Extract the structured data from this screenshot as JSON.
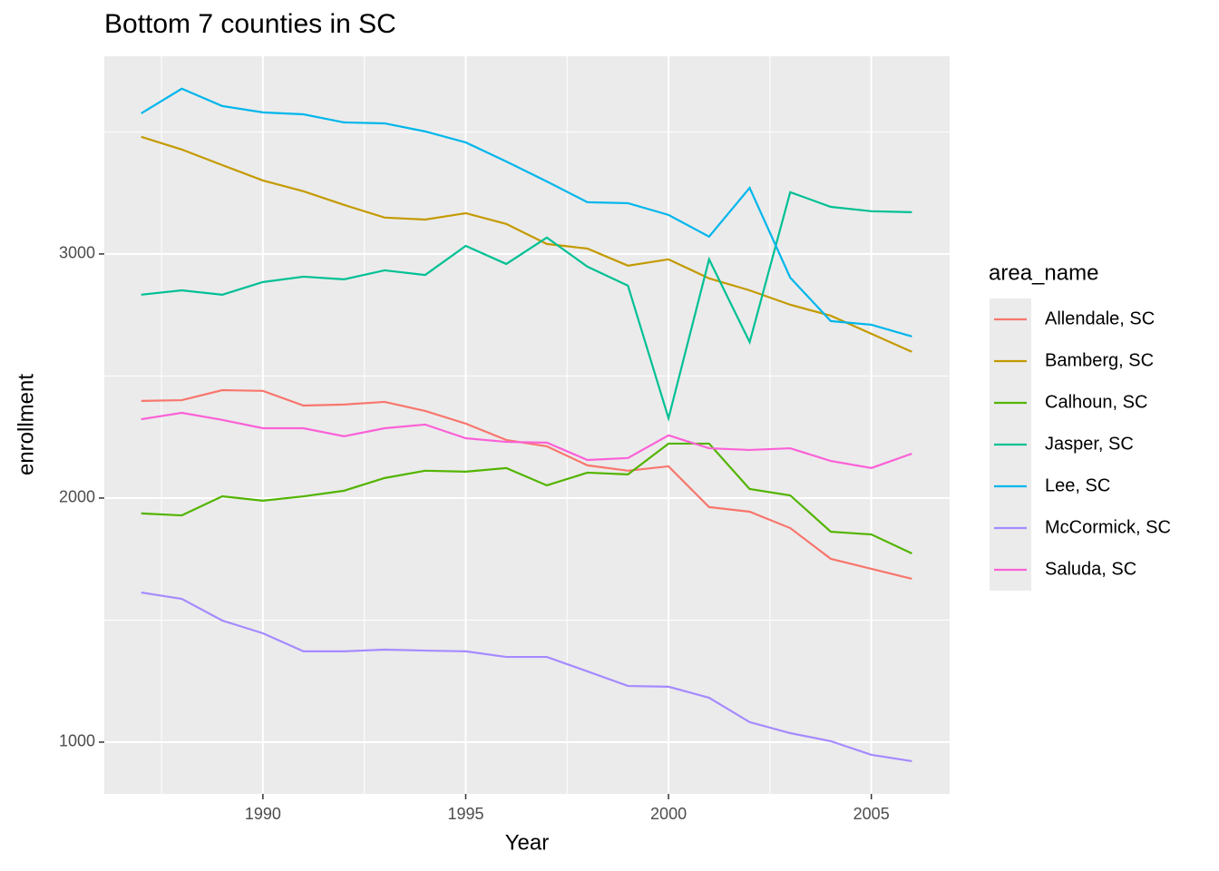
{
  "chart_data": {
    "type": "line",
    "title": "Bottom 7 counties in SC",
    "x_label": "Year",
    "y_label": "enrollment",
    "x": [
      1987,
      1988,
      1989,
      1990,
      1991,
      1992,
      1993,
      1994,
      1995,
      1996,
      1997,
      1998,
      1999,
      2000,
      2001,
      2002,
      2003,
      2004,
      2005,
      2006
    ],
    "xlim": [
      1986.09,
      2006.93
    ],
    "xticks": [
      1990,
      1995,
      2000,
      2005
    ],
    "ylim": [
      788,
      3810
    ],
    "yticks": [
      1000,
      2000,
      3000
    ],
    "grid": true,
    "legend_position": "right",
    "legend_title": "area_name",
    "series": [
      {
        "name": "Allendale, SC",
        "color": "#F8766D",
        "values": [
          2398,
          2401,
          2442,
          2439,
          2379,
          2383,
          2394,
          2357,
          2305,
          2238,
          2212,
          2134,
          2112,
          2130,
          1963,
          1944,
          1877,
          1751,
          1710,
          1669
        ]
      },
      {
        "name": "Bamberg, SC",
        "color": "#C49A00",
        "values": [
          3480,
          3428,
          3364,
          3301,
          3257,
          3201,
          3149,
          3141,
          3167,
          3123,
          3041,
          3022,
          2952,
          2978,
          2900,
          2851,
          2792,
          2747,
          2673,
          2599
        ]
      },
      {
        "name": "Calhoun, SC",
        "color": "#53B400",
        "values": [
          1937,
          1929,
          2007,
          1989,
          2007,
          2030,
          2082,
          2112,
          2108,
          2123,
          2052,
          2104,
          2097,
          2223,
          2223,
          2037,
          2011,
          1862,
          1851,
          1773
        ]
      },
      {
        "name": "Jasper, SC",
        "color": "#00C094",
        "values": [
          2833,
          2851,
          2833,
          2885,
          2907,
          2896,
          2933,
          2914,
          3033,
          2959,
          3067,
          2948,
          2870,
          2327,
          2978,
          2639,
          3253,
          3193,
          3175,
          3171
        ]
      },
      {
        "name": "Lee, SC",
        "color": "#00B6EB",
        "values": [
          3576,
          3677,
          3606,
          3580,
          3572,
          3539,
          3535,
          3502,
          3457,
          3379,
          3297,
          3212,
          3208,
          3160,
          3071,
          3271,
          2903,
          2725,
          2710,
          2662
        ]
      },
      {
        "name": "McCormick, SC",
        "color": "#A58AFF",
        "values": [
          1613,
          1587,
          1498,
          1446,
          1372,
          1372,
          1379,
          1375,
          1372,
          1349,
          1349,
          1290,
          1230,
          1227,
          1182,
          1082,
          1037,
          1004,
          948,
          922
        ]
      },
      {
        "name": "Saluda, SC",
        "color": "#FB61D7",
        "values": [
          2323,
          2349,
          2320,
          2286,
          2286,
          2253,
          2286,
          2301,
          2245,
          2230,
          2227,
          2156,
          2164,
          2257,
          2204,
          2197,
          2204,
          2152,
          2123,
          2182
        ]
      }
    ]
  }
}
